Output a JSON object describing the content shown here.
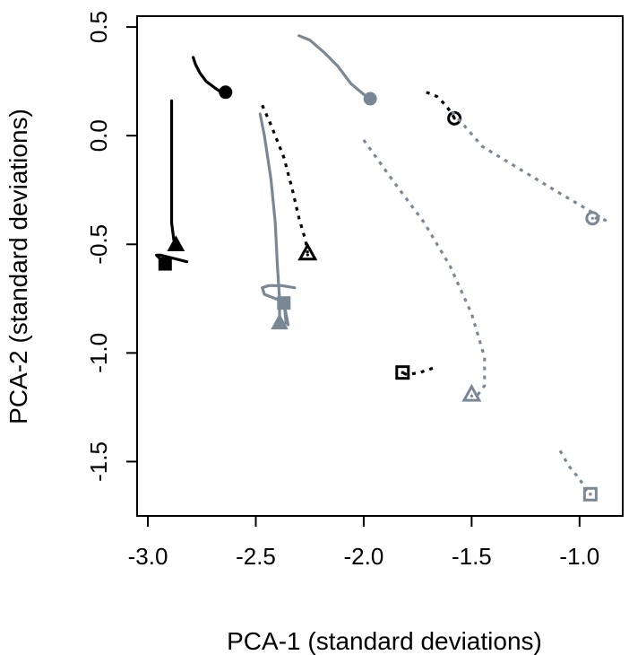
{
  "chart_data": {
    "type": "line",
    "xlabel": "PCA-1 (standard deviations)",
    "ylabel": "PCA-2 (standard deviations)",
    "xlim": [
      -3.05,
      -0.8
    ],
    "ylim": [
      -1.75,
      0.55
    ],
    "xticks": [
      -3.0,
      -2.5,
      -2.0,
      -1.5,
      -1.0
    ],
    "xtick_labels": [
      "-3.0",
      "-2.5",
      "-2.0",
      "-1.5",
      "-1.0"
    ],
    "yticks": [
      0.5,
      0.0,
      -0.5,
      -1.0,
      -1.5
    ],
    "ytick_labels": [
      "0.5",
      "0.0",
      "-0.5",
      "-1.0",
      "-1.5"
    ],
    "grid": false,
    "series": [
      {
        "color": "#000000",
        "line": "solid",
        "marker": "circle",
        "filled": true,
        "points": [
          [
            -2.79,
            0.36
          ],
          [
            -2.78,
            0.33
          ],
          [
            -2.76,
            0.29
          ],
          [
            -2.73,
            0.25
          ],
          [
            -2.69,
            0.22
          ],
          [
            -2.66,
            0.2
          ],
          [
            -2.64,
            0.2
          ]
        ]
      },
      {
        "color": "#000000",
        "line": "solid",
        "marker": "triangle",
        "filled": true,
        "points": [
          [
            -2.89,
            0.16
          ],
          [
            -2.89,
            0.0
          ],
          [
            -2.89,
            -0.2
          ],
          [
            -2.89,
            -0.4
          ],
          [
            -2.88,
            -0.48
          ],
          [
            -2.87,
            -0.5
          ]
        ]
      },
      {
        "color": "#000000",
        "line": "solid",
        "marker": "square",
        "filled": true,
        "points": [
          [
            -2.82,
            -0.58
          ],
          [
            -2.88,
            -0.565
          ],
          [
            -2.94,
            -0.55
          ],
          [
            -2.96,
            -0.55
          ],
          [
            -2.93,
            -0.58
          ],
          [
            -2.92,
            -0.59
          ]
        ]
      },
      {
        "color": "#7a8896",
        "line": "solid",
        "marker": "circle",
        "filled": true,
        "points": [
          [
            -2.3,
            0.46
          ],
          [
            -2.25,
            0.44
          ],
          [
            -2.18,
            0.38
          ],
          [
            -2.12,
            0.32
          ],
          [
            -2.06,
            0.24
          ],
          [
            -2.0,
            0.19
          ],
          [
            -1.97,
            0.17
          ]
        ]
      },
      {
        "color": "#7a8896",
        "line": "solid",
        "marker": "triangle",
        "filled": true,
        "points": [
          [
            -2.48,
            0.1
          ],
          [
            -2.46,
            0.0
          ],
          [
            -2.43,
            -0.2
          ],
          [
            -2.41,
            -0.4
          ],
          [
            -2.4,
            -0.6
          ],
          [
            -2.39,
            -0.75
          ],
          [
            -2.39,
            -0.86
          ]
        ]
      },
      {
        "color": "#7a8896",
        "line": "solid",
        "marker": "square",
        "filled": true,
        "points": [
          [
            -2.32,
            -0.7
          ],
          [
            -2.38,
            -0.69
          ],
          [
            -2.44,
            -0.69
          ],
          [
            -2.47,
            -0.7
          ],
          [
            -2.46,
            -0.73
          ],
          [
            -2.41,
            -0.75
          ],
          [
            -2.37,
            -0.76
          ],
          [
            -2.36,
            -0.86
          ],
          [
            -2.35,
            -0.87
          ],
          [
            -2.37,
            -0.77
          ]
        ]
      },
      {
        "color": "#000000",
        "line": "dotted",
        "marker": "triangle",
        "filled": false,
        "points": [
          [
            -2.47,
            0.14
          ],
          [
            -2.43,
            0.05
          ],
          [
            -2.37,
            -0.1
          ],
          [
            -2.33,
            -0.25
          ],
          [
            -2.3,
            -0.38
          ],
          [
            -2.27,
            -0.48
          ],
          [
            -2.26,
            -0.54
          ]
        ]
      },
      {
        "color": "#000000",
        "line": "dotted",
        "marker": "circle",
        "filled": false,
        "points": [
          [
            -1.71,
            0.2
          ],
          [
            -1.66,
            0.18
          ],
          [
            -1.62,
            0.14
          ],
          [
            -1.59,
            0.1
          ],
          [
            -1.58,
            0.08
          ]
        ]
      },
      {
        "color": "#000000",
        "line": "dotted",
        "marker": "square",
        "filled": false,
        "points": [
          [
            -1.68,
            -1.07
          ],
          [
            -1.74,
            -1.09
          ],
          [
            -1.8,
            -1.1
          ],
          [
            -1.82,
            -1.09
          ]
        ]
      },
      {
        "color": "#7a8896",
        "line": "dotted",
        "marker": "circle",
        "filled": false,
        "points": [
          [
            -1.59,
            0.11
          ],
          [
            -1.45,
            -0.05
          ],
          [
            -1.25,
            -0.17
          ],
          [
            -1.1,
            -0.26
          ],
          [
            -0.98,
            -0.33
          ],
          [
            -0.88,
            -0.39
          ],
          [
            -0.9,
            -0.38
          ],
          [
            -0.94,
            -0.38
          ]
        ]
      },
      {
        "color": "#7a8896",
        "line": "dotted",
        "marker": "triangle",
        "filled": false,
        "points": [
          [
            -2.0,
            -0.02
          ],
          [
            -1.87,
            -0.2
          ],
          [
            -1.72,
            -0.4
          ],
          [
            -1.6,
            -0.6
          ],
          [
            -1.5,
            -0.82
          ],
          [
            -1.44,
            -1.02
          ],
          [
            -1.44,
            -1.15
          ],
          [
            -1.47,
            -1.19
          ],
          [
            -1.5,
            -1.19
          ]
        ]
      },
      {
        "color": "#7a8896",
        "line": "dotted",
        "marker": "square",
        "filled": false,
        "points": [
          [
            -1.09,
            -1.45
          ],
          [
            -1.05,
            -1.52
          ],
          [
            -1.0,
            -1.58
          ],
          [
            -0.97,
            -1.63
          ],
          [
            -0.95,
            -1.65
          ]
        ]
      }
    ]
  }
}
